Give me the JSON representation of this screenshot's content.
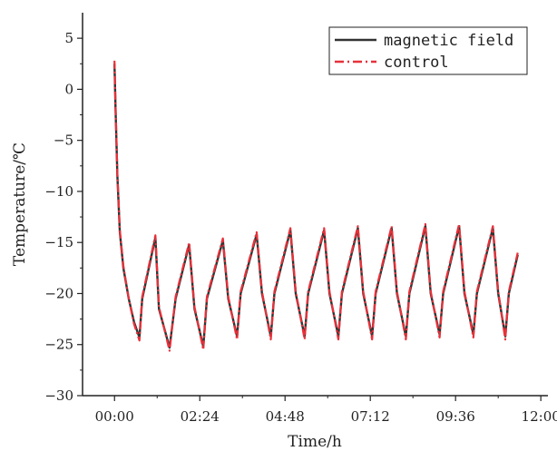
{
  "chart_data": {
    "type": "line",
    "title": "",
    "xlabel": "Time/h",
    "ylabel": "Temperature/℃",
    "x_unit": "hours",
    "xlim": [
      -0.9,
      12.2
    ],
    "ylim": [
      -30,
      7.5
    ],
    "xticks": [
      0,
      2.4,
      4.8,
      7.2,
      9.6,
      12
    ],
    "xtick_labels": [
      "00:00",
      "02:24",
      "04:48",
      "07:12",
      "09:36",
      "12:00"
    ],
    "yticks": [
      5,
      0,
      -5,
      -10,
      -15,
      -20,
      -25,
      -30
    ],
    "ytick_labels": [
      "5",
      "0",
      "−5",
      "−10",
      "−15",
      "−20",
      "−25",
      "−30"
    ],
    "grid": false,
    "legend_position": "top-right",
    "series": [
      {
        "name": "magnetic field",
        "color": "#333333",
        "style": "solid",
        "x": [
          0,
          0.03,
          0.08,
          0.15,
          0.25,
          0.4,
          0.55,
          0.7,
          0.78,
          1.15,
          1.25,
          1.55,
          1.72,
          2.1,
          2.25,
          2.5,
          2.6,
          3.05,
          3.2,
          3.45,
          3.55,
          4.0,
          4.15,
          4.4,
          4.5,
          4.95,
          5.1,
          5.35,
          5.45,
          5.9,
          6.05,
          6.3,
          6.4,
          6.85,
          7.0,
          7.25,
          7.35,
          7.8,
          7.95,
          8.2,
          8.3,
          8.75,
          8.9,
          9.15,
          9.25,
          9.7,
          9.85,
          10.1,
          10.2,
          10.65,
          10.8,
          11.0,
          11.1,
          11.35
        ],
        "y": [
          2.5,
          -2.0,
          -8.5,
          -14.0,
          -17.5,
          -20.5,
          -22.8,
          -24.3,
          -20.5,
          -14.5,
          -21.5,
          -25.3,
          -20.5,
          -15.2,
          -21.5,
          -25.2,
          -20.5,
          -14.8,
          -20.5,
          -24.2,
          -20.0,
          -14.2,
          -20.0,
          -24.2,
          -20.0,
          -13.8,
          -20.0,
          -24.2,
          -20.0,
          -13.8,
          -20.0,
          -24.2,
          -20.0,
          -13.6,
          -20.0,
          -24.2,
          -20.0,
          -13.6,
          -20.0,
          -24.2,
          -20.0,
          -13.4,
          -20.0,
          -24.0,
          -20.0,
          -13.4,
          -20.0,
          -24.0,
          -20.0,
          -13.6,
          -20.0,
          -24.2,
          -20.0,
          -16.2
        ]
      },
      {
        "name": "control",
        "color": "#e8313a",
        "style": "dash-dot",
        "x": [
          0,
          0.03,
          0.08,
          0.15,
          0.25,
          0.4,
          0.55,
          0.7,
          0.78,
          1.15,
          1.25,
          1.55,
          1.72,
          2.1,
          2.25,
          2.5,
          2.6,
          3.05,
          3.2,
          3.45,
          3.55,
          4.0,
          4.15,
          4.4,
          4.5,
          4.95,
          5.1,
          5.35,
          5.45,
          5.9,
          6.05,
          6.3,
          6.4,
          6.85,
          7.0,
          7.25,
          7.35,
          7.8,
          7.95,
          8.2,
          8.3,
          8.75,
          8.9,
          9.15,
          9.25,
          9.7,
          9.85,
          10.1,
          10.2,
          10.65,
          10.8,
          11.0,
          11.1,
          11.35
        ],
        "y": [
          2.8,
          -1.8,
          -8.3,
          -13.8,
          -17.3,
          -20.5,
          -23.0,
          -24.6,
          -20.3,
          -14.3,
          -21.3,
          -25.6,
          -20.3,
          -15.0,
          -21.3,
          -25.5,
          -20.3,
          -14.6,
          -20.3,
          -24.5,
          -19.8,
          -14.0,
          -19.8,
          -24.5,
          -19.8,
          -13.6,
          -19.8,
          -24.5,
          -19.8,
          -13.6,
          -19.8,
          -24.5,
          -19.8,
          -13.4,
          -19.8,
          -24.5,
          -19.8,
          -13.4,
          -19.8,
          -24.5,
          -19.8,
          -13.2,
          -19.8,
          -24.3,
          -19.8,
          -13.2,
          -19.8,
          -24.3,
          -19.8,
          -13.4,
          -19.8,
          -24.5,
          -19.8,
          -16.0
        ]
      }
    ]
  }
}
